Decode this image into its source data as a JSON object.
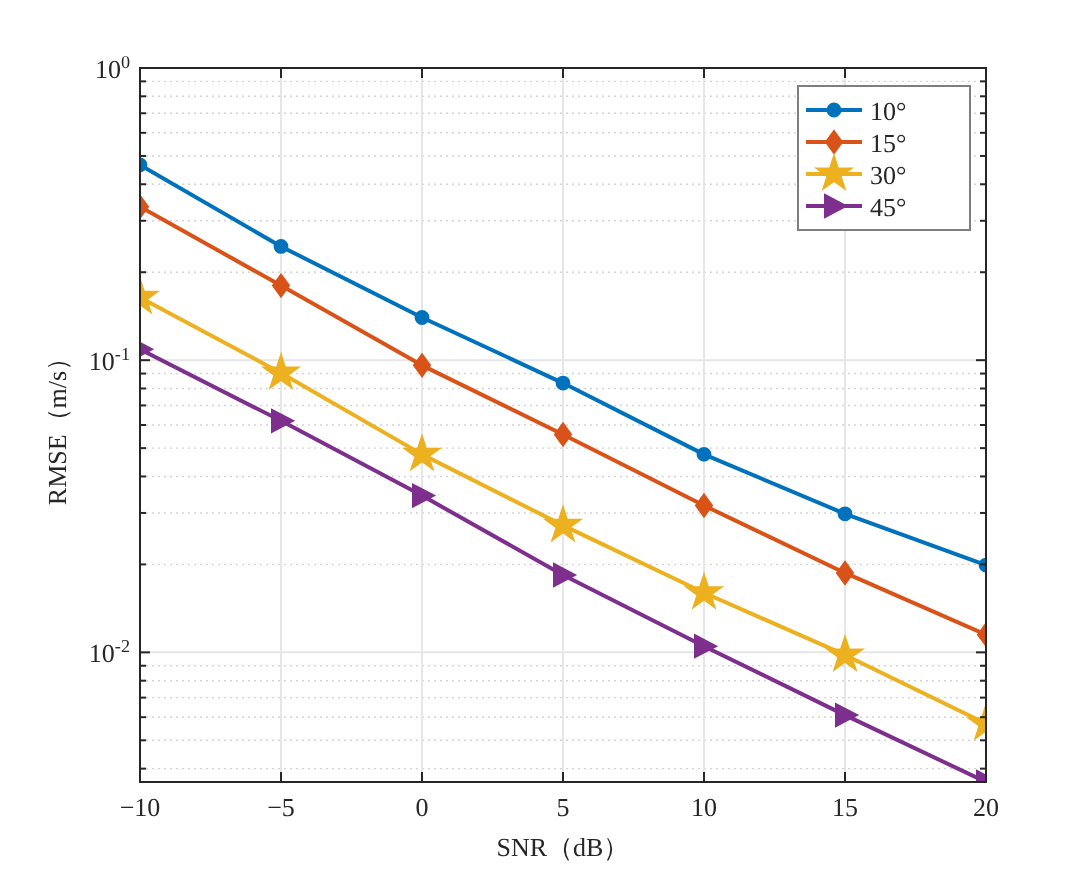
{
  "chart_data": {
    "type": "line",
    "xlabel": "SNR（dB）",
    "ylabel": "RMSE（m/s）",
    "log": "y",
    "grid": true,
    "legend": "top right",
    "line_style": "solid",
    "x": [
      -10,
      -5,
      0,
      5,
      10,
      15,
      20
    ],
    "xlim": [
      -10,
      20
    ],
    "xticks": [
      -10,
      -5,
      0,
      5,
      10,
      15,
      20
    ],
    "ylim": [
      0.0036,
      1
    ],
    "yticks": [
      {
        "value": 0.01,
        "label": "10$^{-2}$"
      },
      {
        "value": 0.1,
        "label": "10$^{-1}$"
      },
      {
        "value": 1,
        "label": "10$^{0}$"
      }
    ],
    "series": [
      {
        "name": "10°",
        "color": "#0072bd",
        "marker": "circle",
        "values": [
          0.466,
          0.245,
          0.14,
          0.0835,
          0.0476,
          0.0298,
          0.0199
        ]
      },
      {
        "name": "15°",
        "color": "#d95319",
        "marker": "diamond",
        "values": [
          0.335,
          0.18,
          0.096,
          0.0557,
          0.0318,
          0.0187,
          0.0115
        ]
      },
      {
        "name": "30°",
        "color": "#edb120",
        "marker": "star",
        "values": [
          0.164,
          0.0904,
          0.0476,
          0.0272,
          0.016,
          0.0098,
          0.0057
        ]
      },
      {
        "name": "45°",
        "color": "#7e2f8e",
        "marker": "triangle",
        "values": [
          0.109,
          0.062,
          0.0344,
          0.0184,
          0.0105,
          0.0061,
          0.0036
        ]
      }
    ]
  }
}
